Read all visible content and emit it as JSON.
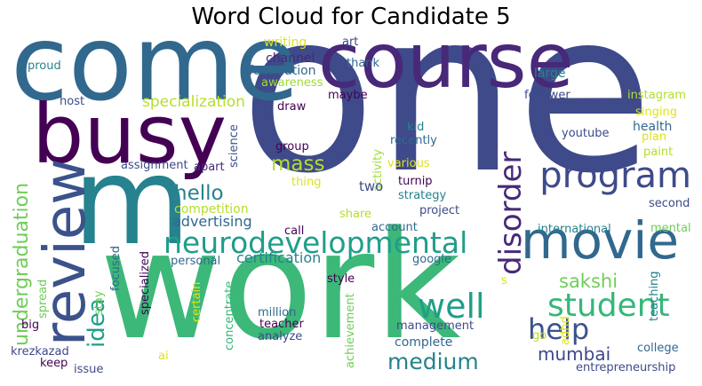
{
  "title": "Word Cloud for Candidate 5",
  "palette": {
    "purple_dark": "#440154",
    "indigo": "#3e4a89",
    "blue": "#31688e",
    "teal": "#26828e",
    "green_teal": "#1f9e89",
    "green": "#35b779",
    "light_green": "#6ece58",
    "yellow_green": "#b5de2b",
    "yellow": "#dde318"
  },
  "words": [
    {
      "text": "one",
      "color": "#3e4a89"
    },
    {
      "text": "work",
      "color": "#3cb878"
    },
    {
      "text": "come",
      "color": "#31688e"
    },
    {
      "text": "course",
      "color": "#482878"
    },
    {
      "text": "busy",
      "color": "#440154"
    },
    {
      "text": "m",
      "color": "#26828e"
    },
    {
      "text": "review",
      "color": "#3b528b"
    },
    {
      "text": "movie",
      "color": "#31688e"
    },
    {
      "text": "neurodevelopmental",
      "color": "#1f9e89"
    },
    {
      "text": "program",
      "color": "#3e4a89"
    },
    {
      "text": "disorder",
      "color": "#482878"
    },
    {
      "text": "student",
      "color": "#35b779"
    },
    {
      "text": "well",
      "color": "#1f9e89"
    },
    {
      "text": "help",
      "color": "#3b528b"
    },
    {
      "text": "idea",
      "color": "#1f9e89"
    },
    {
      "text": "undergraduation",
      "color": "#6ece58"
    },
    {
      "text": "medium",
      "color": "#26828e"
    },
    {
      "text": "hello",
      "color": "#26828e"
    },
    {
      "text": "mass",
      "color": "#b5de2b"
    },
    {
      "text": "sakshi",
      "color": "#6ece58"
    },
    {
      "text": "mumbai",
      "color": "#3e4a89"
    },
    {
      "text": "specialization",
      "color": "#b5de2b"
    },
    {
      "text": "advertising",
      "color": "#31688e"
    },
    {
      "text": "certification",
      "color": "#26828e"
    },
    {
      "text": "competition",
      "color": "#b5de2b"
    },
    {
      "text": "writing",
      "color": "#dde318"
    },
    {
      "text": "channel",
      "color": "#482878"
    },
    {
      "text": "foundation",
      "color": "#31688e"
    },
    {
      "text": "awareness",
      "color": "#a0da39"
    },
    {
      "text": "art",
      "color": "#3e4a89"
    },
    {
      "text": "thank",
      "color": "#31688e"
    },
    {
      "text": "health",
      "color": "#31688e"
    },
    {
      "text": "proud",
      "color": "#26828e"
    },
    {
      "text": "host",
      "color": "#3e4a89"
    },
    {
      "text": "science",
      "color": "#3b528b"
    },
    {
      "text": "maybe",
      "color": "#440154"
    },
    {
      "text": "large",
      "color": "#26828e"
    },
    {
      "text": "follower",
      "color": "#3e4a89"
    },
    {
      "text": "instagram",
      "color": "#b5de2b"
    },
    {
      "text": "singing",
      "color": "#dde318"
    },
    {
      "text": "plan",
      "color": "#dde318"
    },
    {
      "text": "paint",
      "color": "#b5de2b"
    },
    {
      "text": "youtube",
      "color": "#3e4a89"
    },
    {
      "text": "draw",
      "color": "#440154"
    },
    {
      "text": "group",
      "color": "#440154"
    },
    {
      "text": "kid",
      "color": "#26828e"
    },
    {
      "text": "recently",
      "color": "#31688e"
    },
    {
      "text": "activity",
      "color": "#a0da39"
    },
    {
      "text": "various",
      "color": "#dde318"
    },
    {
      "text": "thing",
      "color": "#dde318"
    },
    {
      "text": "two",
      "color": "#3e4a89"
    },
    {
      "text": "turnip",
      "color": "#440154"
    },
    {
      "text": "strategy",
      "color": "#26828e"
    },
    {
      "text": "project",
      "color": "#3e4a89"
    },
    {
      "text": "assignment",
      "color": "#3e4a89"
    },
    {
      "text": "apart",
      "color": "#482878"
    },
    {
      "text": "call",
      "color": "#440154"
    },
    {
      "text": "share",
      "color": "#b5de2b"
    },
    {
      "text": "account",
      "color": "#31688e"
    },
    {
      "text": "international",
      "color": "#26828e"
    },
    {
      "text": "mental",
      "color": "#6ece58"
    },
    {
      "text": "second",
      "color": "#3e4a89"
    },
    {
      "text": "google",
      "color": "#31688e"
    },
    {
      "text": "personal",
      "color": "#31688e"
    },
    {
      "text": "focused",
      "color": "#31688e"
    },
    {
      "text": "specialized",
      "color": "#440154"
    },
    {
      "text": "stay",
      "color": "#6ece58"
    },
    {
      "text": "spread",
      "color": "#6ece58"
    },
    {
      "text": "certain",
      "color": "#dde318"
    },
    {
      "text": "concentrate",
      "color": "#35b779"
    },
    {
      "text": "style",
      "color": "#440154"
    },
    {
      "text": "s",
      "color": "#dde318"
    },
    {
      "text": "million",
      "color": "#31688e"
    },
    {
      "text": "teacher",
      "color": "#440154"
    },
    {
      "text": "analyze",
      "color": "#3e4a89"
    },
    {
      "text": "achievement",
      "color": "#6ece58"
    },
    {
      "text": "management",
      "color": "#3e4a89"
    },
    {
      "text": "complete",
      "color": "#31688e"
    },
    {
      "text": "teaching",
      "color": "#26828e"
    },
    {
      "text": "adhd",
      "color": "#dde318"
    },
    {
      "text": "go",
      "color": "#b5de2b"
    },
    {
      "text": "college",
      "color": "#31688e"
    },
    {
      "text": "big",
      "color": "#440154"
    },
    {
      "text": "krezkazad",
      "color": "#3e4a89"
    },
    {
      "text": "keep",
      "color": "#440154"
    },
    {
      "text": "issue",
      "color": "#3e4a89"
    },
    {
      "text": "ai",
      "color": "#dde318"
    },
    {
      "text": "entrepreneurship",
      "color": "#3e4a89"
    }
  ]
}
